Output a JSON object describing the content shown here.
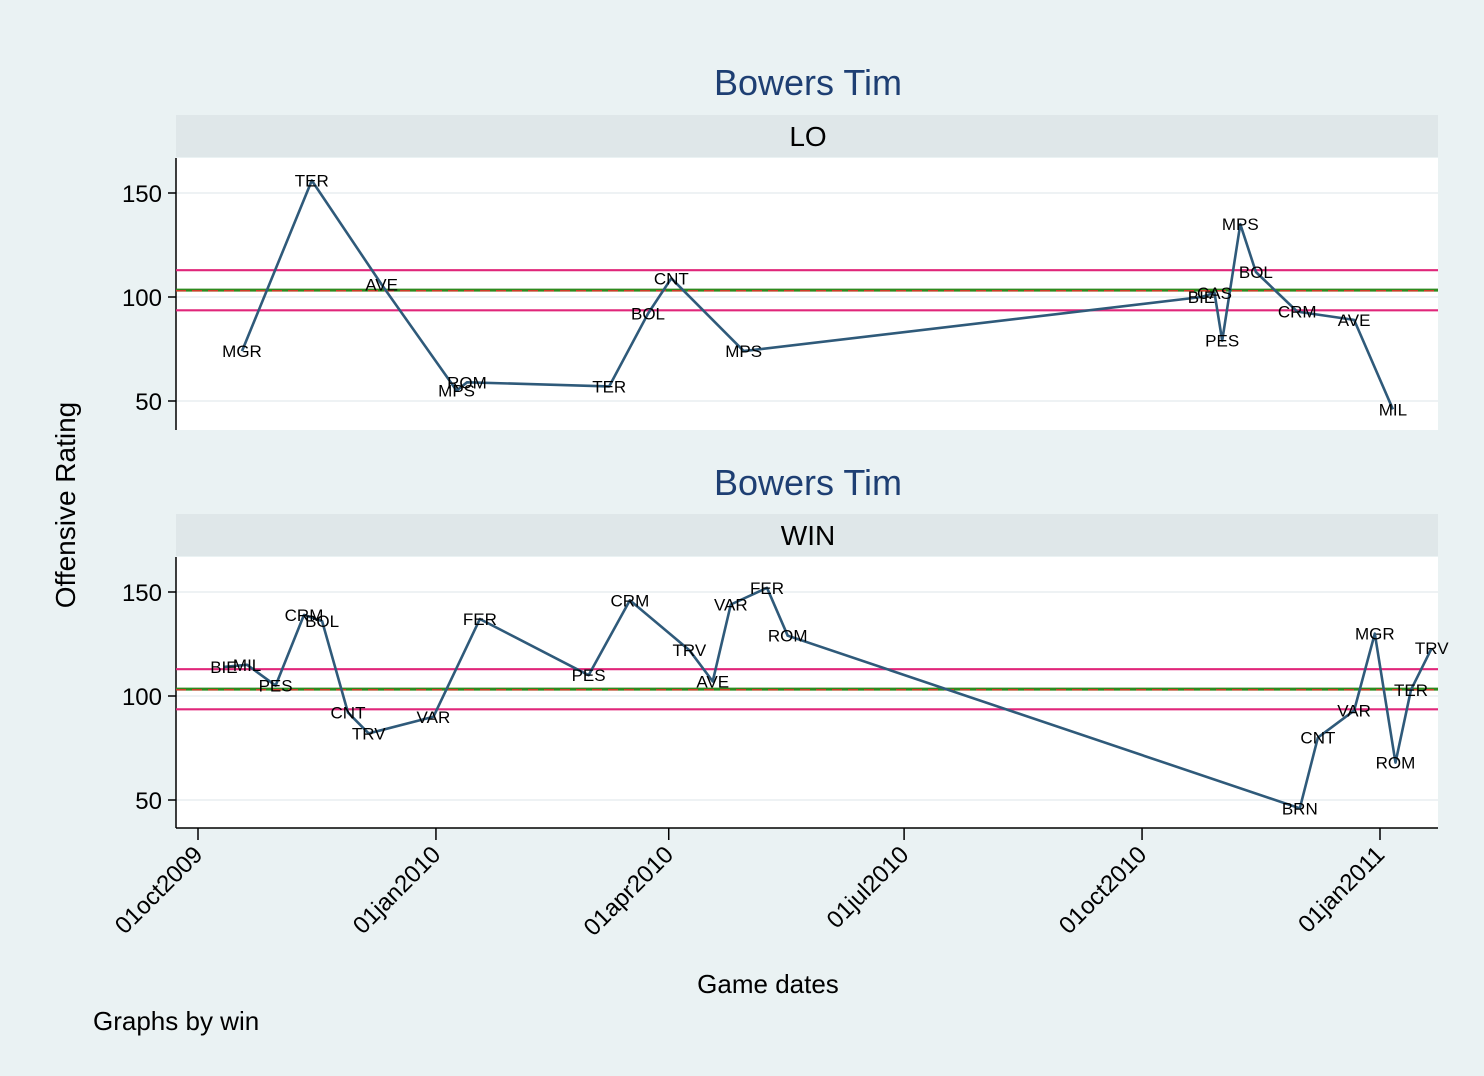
{
  "colors": {
    "outer_background": "#eaf2f3",
    "plot_background": "#ffffff",
    "strip_background": "#dfe7e9",
    "title_color": "#1e3f73",
    "series_line": "#2f5a7a",
    "ref_pink": "#e0267a",
    "ref_green": "#2e8a1e",
    "ref_dashed_red": "#d43a2a",
    "grid": "#e8eef0",
    "text": "#000000"
  },
  "ylabel": "Offensive Rating",
  "xlabel": "Game dates",
  "note": "Graphs by win",
  "x_ticks": [
    "01oct2009",
    "01jan2010",
    "01apr2010",
    "01jul2010",
    "01oct2010",
    "01jan2011"
  ],
  "y_ticks": [
    50,
    100,
    150
  ],
  "chart_data": [
    {
      "type": "line",
      "title": "Bowers Tim",
      "subtitle": "LO",
      "xlabel": "Game dates",
      "ylabel": "Offensive Rating",
      "ylim": [
        35,
        165
      ],
      "grid": true,
      "ref_lines": [
        {
          "y": 112.9,
          "color": "pink"
        },
        {
          "y": 103.3,
          "color": "green"
        },
        {
          "y": 103.0,
          "color": "red-dashed"
        },
        {
          "y": 93.6,
          "color": "pink"
        }
      ],
      "points": [
        {
          "date": "2009-10-18",
          "label": "MGR",
          "y": 74
        },
        {
          "date": "2009-11-14",
          "label": "TER",
          "y": 156
        },
        {
          "date": "2009-12-11",
          "label": "AVE",
          "y": 106
        },
        {
          "date": "2010-01-09",
          "label": "MPS",
          "y": 55
        },
        {
          "date": "2010-01-13",
          "label": "ROM",
          "y": 59
        },
        {
          "date": "2010-03-09",
          "label": "TER",
          "y": 57
        },
        {
          "date": "2010-03-24",
          "label": "BOL",
          "y": 92
        },
        {
          "date": "2010-04-02",
          "label": "CNT",
          "y": 109
        },
        {
          "date": "2010-04-30",
          "label": "MPS",
          "y": 74
        },
        {
          "date": "2010-10-24",
          "label": "BIE",
          "y": 100
        },
        {
          "date": "2010-10-29",
          "label": "CAS",
          "y": 102
        },
        {
          "date": "2010-11-01",
          "label": "PES",
          "y": 79
        },
        {
          "date": "2010-11-08",
          "label": "MPS",
          "y": 135
        },
        {
          "date": "2010-11-14",
          "label": "BOL",
          "y": 112
        },
        {
          "date": "2010-11-30",
          "label": "CRM",
          "y": 93
        },
        {
          "date": "2010-12-22",
          "label": "AVE",
          "y": 89
        },
        {
          "date": "2011-01-06",
          "label": "MIL",
          "y": 46
        }
      ]
    },
    {
      "type": "line",
      "title": "Bowers Tim",
      "subtitle": "WIN",
      "xlabel": "Game dates",
      "ylabel": "Offensive Rating",
      "ylim": [
        35,
        165
      ],
      "grid": true,
      "ref_lines": [
        {
          "y": 112.9,
          "color": "pink"
        },
        {
          "y": 103.3,
          "color": "green"
        },
        {
          "y": 103.0,
          "color": "red-dashed"
        },
        {
          "y": 93.6,
          "color": "pink"
        }
      ],
      "points": [
        {
          "date": "2009-10-11",
          "label": "BIE",
          "y": 114
        },
        {
          "date": "2009-10-20",
          "label": "MIL",
          "y": 115
        },
        {
          "date": "2009-10-31",
          "label": "PES",
          "y": 105
        },
        {
          "date": "2009-11-11",
          "label": "CRM",
          "y": 139
        },
        {
          "date": "2009-11-18",
          "label": "BOL",
          "y": 136
        },
        {
          "date": "2009-11-28",
          "label": "CNT",
          "y": 92
        },
        {
          "date": "2009-12-06",
          "label": "TRV",
          "y": 82
        },
        {
          "date": "2009-12-31",
          "label": "VAR",
          "y": 90
        },
        {
          "date": "2010-01-18",
          "label": "FER",
          "y": 137
        },
        {
          "date": "2010-03-01",
          "label": "PES",
          "y": 110
        },
        {
          "date": "2010-03-17",
          "label": "CRM",
          "y": 146
        },
        {
          "date": "2010-04-09",
          "label": "TRV",
          "y": 122
        },
        {
          "date": "2010-04-18",
          "label": "AVE",
          "y": 107
        },
        {
          "date": "2010-04-25",
          "label": "VAR",
          "y": 144
        },
        {
          "date": "2010-05-09",
          "label": "FER",
          "y": 152
        },
        {
          "date": "2010-05-17",
          "label": "ROM",
          "y": 129
        },
        {
          "date": "2010-12-01",
          "label": "BRN",
          "y": 46
        },
        {
          "date": "2010-12-08",
          "label": "CNT",
          "y": 80
        },
        {
          "date": "2010-12-22",
          "label": "VAR",
          "y": 93
        },
        {
          "date": "2010-12-30",
          "label": "MGR",
          "y": 130
        },
        {
          "date": "2011-01-07",
          "label": "ROM",
          "y": 68
        },
        {
          "date": "2011-01-13",
          "label": "TER",
          "y": 103
        },
        {
          "date": "2011-01-21",
          "label": "TRV",
          "y": 123
        }
      ]
    }
  ]
}
